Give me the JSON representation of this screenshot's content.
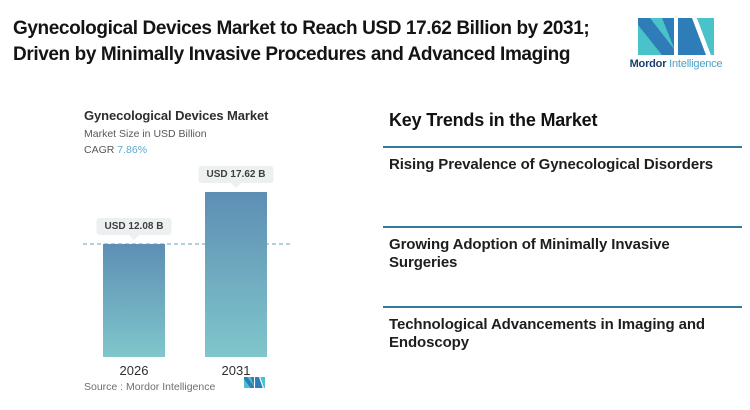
{
  "header": {
    "lines": [
      "Gynecological Devices Market to Reach USD 17.62 Billion by 2031;",
      "Driven by Minimally Invasive Procedures and Advanced Imaging"
    ]
  },
  "logo": {
    "brand_primary": "Mordor",
    "brand_secondary": "Intelligence",
    "mark_blue": "#2e7cb8",
    "mark_teal": "#49c3c9"
  },
  "chart": {
    "title": "Gynecological Devices Market",
    "subtitle": "Market Size in USD Billion",
    "cagr_label": "CAGR",
    "cagr_value": "7.86%",
    "source_label": "Source :  Mordor Intelligence"
  },
  "chart_data": {
    "type": "bar",
    "title": "Gynecological Devices Market",
    "ylabel": "Market Size in USD Billion",
    "cagr": "7.86%",
    "categories": [
      "2026",
      "2031"
    ],
    "values": [
      12.08,
      17.62
    ],
    "value_labels": [
      "USD 12.08 B",
      "USD 17.62 B"
    ],
    "unit": "USD Billion",
    "ylim": [
      0,
      20
    ],
    "reference_line": 12.08,
    "grid": false,
    "legend": "none",
    "bar_gradient": [
      "#5d8fb4",
      "#80c6cb"
    ],
    "reference_line_color": "#b5cfdb",
    "label_pill_color": "#edf0f1"
  },
  "trends": {
    "heading": "Key Trends in the Market",
    "divider_color": "#35799e",
    "items": [
      {
        "label": "Rising Prevalence of Gynecological Disorders"
      },
      {
        "label": "Growing Adoption of Minimally Invasive Surgeries"
      },
      {
        "label": "Technological Advancements in Imaging and Endoscopy"
      }
    ]
  }
}
